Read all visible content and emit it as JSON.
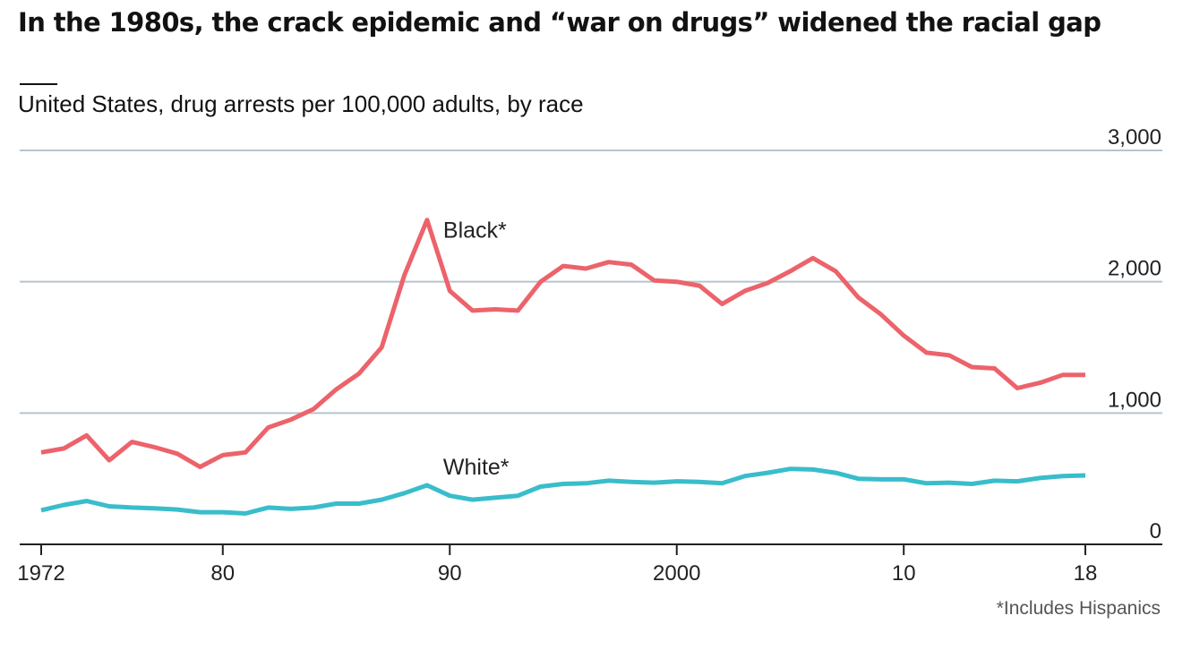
{
  "title": "In the 1980s, the crack epidemic and “war on drugs” widened the racial gap",
  "subtitle": "United States, drug arrests per 100,000 adults, by race",
  "footnote": "*Includes Hispanics",
  "colors": {
    "black_series": "#EC636B",
    "white_series": "#39BDCB",
    "grid": "#B7C4CC",
    "axis": "#222222"
  },
  "chart_data": {
    "type": "line",
    "x": [
      1972,
      1973,
      1974,
      1975,
      1976,
      1977,
      1978,
      1979,
      1980,
      1981,
      1982,
      1983,
      1984,
      1985,
      1986,
      1987,
      1988,
      1989,
      1990,
      1991,
      1992,
      1993,
      1994,
      1995,
      1996,
      1997,
      1998,
      1999,
      2000,
      2001,
      2002,
      2003,
      2004,
      2005,
      2006,
      2007,
      2008,
      2009,
      2010,
      2011,
      2012,
      2013,
      2014,
      2015,
      2016,
      2017,
      2018
    ],
    "series": [
      {
        "name": "Black*",
        "color": "#EC636B",
        "values": [
          700,
          730,
          830,
          640,
          780,
          740,
          690,
          590,
          680,
          700,
          890,
          950,
          1030,
          1180,
          1300,
          1500,
          2050,
          2470,
          1930,
          1780,
          1790,
          1780,
          2000,
          2120,
          2100,
          2150,
          2130,
          2010,
          2000,
          1970,
          1830,
          1930,
          1990,
          2080,
          2180,
          2080,
          1880,
          1750,
          1590,
          1460,
          1440,
          1350,
          1340,
          1190,
          1230,
          1290,
          1290
        ]
      },
      {
        "name": "White*",
        "color": "#39BDCB",
        "values": [
          260,
          300,
          330,
          290,
          280,
          275,
          265,
          245,
          245,
          235,
          280,
          270,
          280,
          310,
          310,
          340,
          390,
          450,
          370,
          340,
          355,
          370,
          440,
          460,
          465,
          485,
          475,
          470,
          480,
          475,
          465,
          520,
          545,
          575,
          570,
          545,
          500,
          495,
          495,
          465,
          470,
          460,
          485,
          480,
          505,
          520,
          525
        ]
      }
    ],
    "x_ticks": [
      {
        "value": 1972,
        "label": "1972"
      },
      {
        "value": 1980,
        "label": "80"
      },
      {
        "value": 1990,
        "label": "90"
      },
      {
        "value": 2000,
        "label": "2000"
      },
      {
        "value": 2010,
        "label": "10"
      },
      {
        "value": 2018,
        "label": "18"
      }
    ],
    "y_ticks": [
      {
        "value": 0,
        "label": "0"
      },
      {
        "value": 1000,
        "label": "1,000"
      },
      {
        "value": 2000,
        "label": "2,000"
      },
      {
        "value": 3000,
        "label": "3,000"
      }
    ],
    "ylim": [
      0,
      3000
    ],
    "xlim": [
      1971,
      2021
    ],
    "grid": true,
    "legend": "direct labels"
  }
}
